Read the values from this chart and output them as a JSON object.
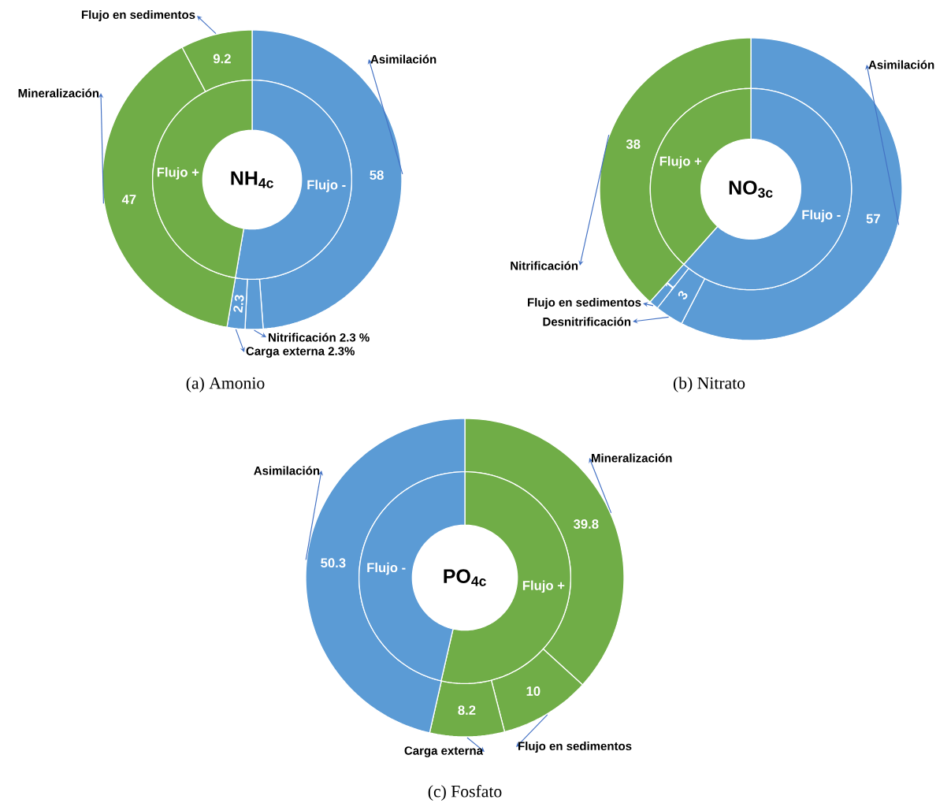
{
  "chart_data": [
    {
      "type": "donut",
      "title": "NH$_{4c}$",
      "annotations": [
        "(a) Amonio"
      ],
      "categories": [
        "Asimilación",
        "Nitrificación 2.3 %",
        "Carga externa 2.3%",
        "Mineralización",
        "Flujo en sedimentos"
      ],
      "values": [
        58,
        2.3,
        2.3,
        47,
        9.2
      ],
      "colors": [
        "#5b9bd5",
        "#5b9bd5",
        "#5b9bd5",
        "#70ad47",
        "#70ad47"
      ],
      "value_labels": [
        "58",
        null,
        "2.3",
        "47",
        "9.2"
      ]
    },
    {
      "type": "donut",
      "categories": [
        "Flujo -",
        "Flujo +"
      ],
      "values": [
        52.7,
        47.3
      ],
      "colors": [
        "#5b9bd5",
        "#70ad47"
      ]
    },
    {
      "type": "donut",
      "title": "NO$_{3c}$",
      "annotations": [
        "(b) Nitrato"
      ],
      "categories": [
        "Asimilación",
        "Desnitrificación",
        "Flujo en sedimentos",
        "Nitrificación"
      ],
      "values": [
        57,
        3,
        1,
        38
      ],
      "colors": [
        "#5b9bd5",
        "#5b9bd5",
        "#5b9bd5",
        "#70ad47"
      ],
      "value_labels": [
        "57",
        "3",
        "1",
        "38"
      ]
    },
    {
      "type": "donut",
      "categories": [
        "Flujo -",
        "Flujo +"
      ],
      "values": [
        61.6,
        38.4
      ],
      "colors": [
        "#5b9bd5",
        "#70ad47"
      ]
    },
    {
      "type": "donut",
      "title": "PO$_{4c}$",
      "annotations": [
        "(c) Fosfato"
      ],
      "categories": [
        "Mineralización",
        "Flujo en sedimentos",
        "Carga externa",
        "Asimilación"
      ],
      "values": [
        39.8,
        10,
        8.2,
        50.3
      ],
      "colors": [
        "#70ad47",
        "#70ad47",
        "#70ad47",
        "#5b9bd5"
      ],
      "value_labels": [
        "39.8",
        "10",
        "8.2",
        "50.3"
      ]
    },
    {
      "type": "donut",
      "categories": [
        "Flujo +",
        "Flujo -"
      ],
      "values": [
        53.6,
        46.4
      ],
      "colors": [
        "#70ad47",
        "#5b9bd5"
      ]
    }
  ]
}
